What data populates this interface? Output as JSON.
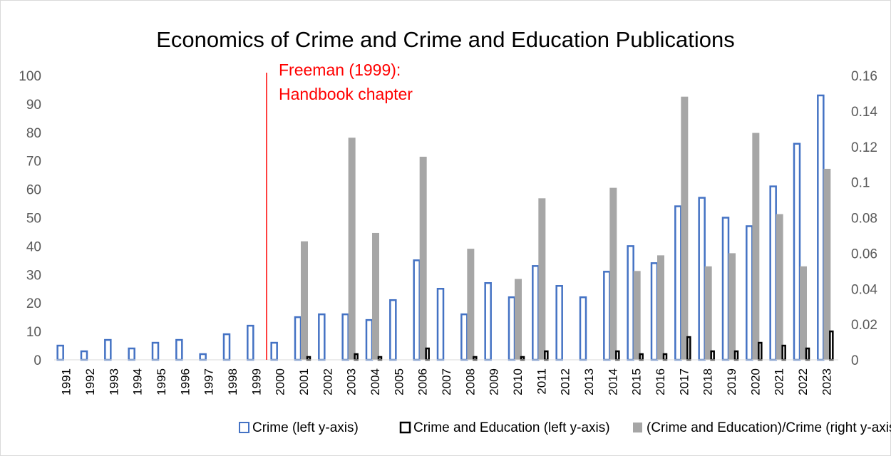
{
  "chart_data": {
    "type": "bar",
    "title": "Economics of Crime and Crime and Education Publications",
    "categories": [
      "1991",
      "1992",
      "1993",
      "1994",
      "1995",
      "1996",
      "1997",
      "1998",
      "1999",
      "2000",
      "2001",
      "2002",
      "2003",
      "2004",
      "2005",
      "2006",
      "2007",
      "2008",
      "2009",
      "2010",
      "2011",
      "2012",
      "2013",
      "2014",
      "2015",
      "2016",
      "2017",
      "2018",
      "2019",
      "2020",
      "2021",
      "2022",
      "2023"
    ],
    "series": [
      {
        "name": "Crime (left y-axis)",
        "axis": "left",
        "style": "outline",
        "color": "#4472c4",
        "values": [
          5,
          3,
          7,
          4,
          6,
          7,
          2,
          9,
          12,
          6,
          15,
          16,
          16,
          14,
          21,
          35,
          25,
          16,
          27,
          22,
          33,
          26,
          22,
          31,
          40,
          34,
          54,
          57,
          50,
          47,
          61,
          76,
          93
        ]
      },
      {
        "name": "Crime and Education (left y-axis)",
        "axis": "left",
        "style": "outline",
        "color": "#000000",
        "values": [
          0,
          0,
          0,
          0,
          0,
          0,
          0,
          0,
          0,
          0,
          1,
          0,
          2,
          1,
          0,
          4,
          0,
          1,
          0,
          1,
          3,
          0,
          0,
          3,
          2,
          2,
          8,
          3,
          3,
          6,
          5,
          4,
          10
        ]
      },
      {
        "name": "(Crime and Education)/Crime (right y-axis)",
        "axis": "right",
        "style": "filled",
        "color": "#a6a6a6",
        "values": [
          0,
          0,
          0,
          0,
          0,
          0,
          0,
          0,
          0,
          0,
          0.0667,
          0,
          0.125,
          0.0714,
          0,
          0.1143,
          0,
          0.0625,
          0,
          0.0455,
          0.0909,
          0,
          0,
          0.0968,
          0.05,
          0.0588,
          0.1481,
          0.0526,
          0.06,
          0.1277,
          0.082,
          0.0526,
          0.1075
        ]
      }
    ],
    "left_axis": {
      "ylim": [
        0,
        100
      ],
      "ticks": [
        "0",
        "10",
        "20",
        "30",
        "40",
        "50",
        "60",
        "70",
        "80",
        "90",
        "100"
      ]
    },
    "right_axis": {
      "ylim": [
        0,
        0.16
      ],
      "ticks": [
        "0",
        "0.02",
        "0.04",
        "0.06",
        "0.08",
        "0.1",
        "0.12",
        "0.14",
        "0.16"
      ]
    },
    "annotation": {
      "year": "1999",
      "lines": [
        "Freeman (1999):",
        "Handbook chapter"
      ],
      "color": "#ff0000"
    },
    "grid": false,
    "legend": "bottom"
  }
}
